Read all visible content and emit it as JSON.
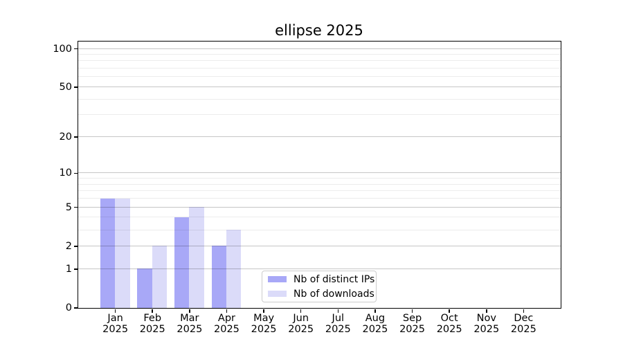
{
  "chart_data": {
    "type": "bar",
    "title": "ellipse 2025",
    "categories": [
      "Jan",
      "Feb",
      "Mar",
      "Apr",
      "May",
      "Jun",
      "Jul",
      "Aug",
      "Sep",
      "Oct",
      "Nov",
      "Dec"
    ],
    "x_year_label": "2025",
    "series": [
      {
        "name": "Nb of distinct IPs",
        "color": "#a8a8f7",
        "values": [
          6,
          1,
          4,
          2,
          0,
          0,
          0,
          0,
          0,
          0,
          0,
          0
        ]
      },
      {
        "name": "Nb of downloads",
        "color": "#dbdbf9",
        "values": [
          6,
          2,
          5,
          3,
          0,
          0,
          0,
          0,
          0,
          0,
          0,
          0
        ]
      }
    ],
    "y_axis": {
      "scale": "log1p",
      "major_ticks": [
        0,
        1,
        2,
        5,
        10,
        20,
        50,
        100
      ],
      "minor_ticks": [
        3,
        4,
        6,
        7,
        8,
        9,
        30,
        40,
        60,
        70,
        80,
        90
      ],
      "top_value": 114
    },
    "x_axis": {
      "tick_count": 12
    },
    "legend": {
      "position": "lower center",
      "entries": [
        "Nb of distinct IPs",
        "Nb of downloads"
      ]
    },
    "grid": "on",
    "colors": {
      "background": "#ffffff",
      "axis": "#000000",
      "major_grid": "#c6c6c6",
      "minor_grid": "#ececec",
      "legend_border": "#cccccc"
    }
  }
}
